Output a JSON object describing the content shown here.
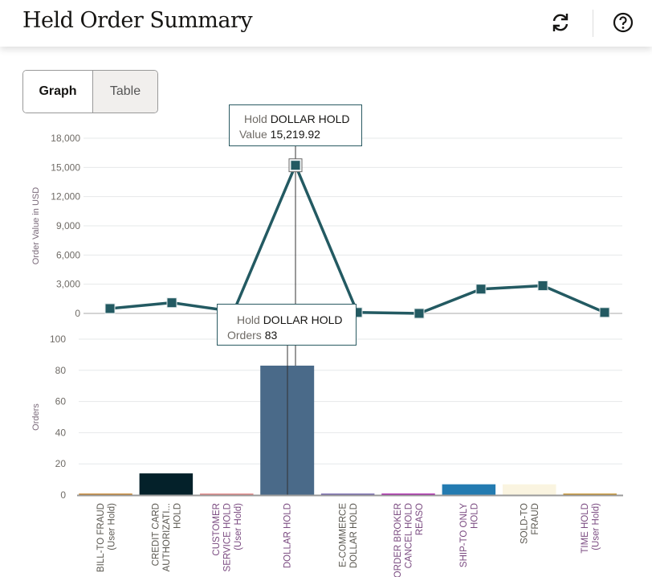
{
  "header": {
    "title": "Held Order Summary",
    "icons": [
      "refresh-icon",
      "help-icon"
    ]
  },
  "view_toggle": {
    "graph_label": "Graph",
    "table_label": "Table",
    "selected": "Graph"
  },
  "tooltips": {
    "value": {
      "hold_label": "Hold",
      "hold_value": "DOLLAR HOLD",
      "value_label": "Value",
      "value_value": "15,219.92"
    },
    "orders": {
      "hold_label": "Hold",
      "hold_value": "DOLLAR HOLD",
      "orders_label": "Orders",
      "orders_value": "83"
    }
  },
  "chart_data": [
    {
      "type": "line",
      "ylabel": "Order Value in USD",
      "ylim": [
        0,
        18000
      ],
      "yticks": [
        "0",
        "3,000",
        "6,000",
        "9,000",
        "12,000",
        "15,000",
        "18,000"
      ],
      "grid": true,
      "color": "#235a62",
      "categories": [
        "BILL-TO FRAUD (User Hold)",
        "CREDIT CARD AUTHORIZATI... HOLD",
        "CUSTOMER SERVICE HOLD (User Hold)",
        "DOLLAR HOLD",
        "E-COMMERCE DOLLAR HOLD",
        "ORDER BROKER CANCEL HOLD REASO",
        "SHIP-TO ONLY HOLD",
        "SOLD-TO FRAUD",
        "TIME HOLD (User Hold)"
      ],
      "values": [
        500,
        1100,
        200,
        15219.92,
        100,
        0,
        2500,
        2850,
        100
      ]
    },
    {
      "type": "bar",
      "ylabel": "Orders",
      "ylim": [
        0,
        100
      ],
      "yticks": [
        "0",
        "20",
        "40",
        "60",
        "80",
        "100"
      ],
      "grid": true,
      "categories": [
        "BILL-TO FRAUD (User Hold)",
        "CREDIT CARD AUTHORIZATI... HOLD",
        "CUSTOMER SERVICE HOLD (User Hold)",
        "DOLLAR HOLD",
        "E-COMMERCE DOLLAR HOLD",
        "ORDER BROKER CANCEL HOLD REASO",
        "SHIP-TO ONLY HOLD",
        "SOLD-TO FRAUD",
        "TIME HOLD (User Hold)"
      ],
      "values": [
        0,
        14,
        0,
        83,
        0,
        1,
        7,
        7,
        0
      ],
      "colors": [
        "#c27a1e",
        "#04212a",
        "#e07a7a",
        "#4a6a89",
        "#6a5aa8",
        "#a20ea2",
        "#237bb1",
        "#faf4e0",
        "#c28a1e"
      ]
    }
  ],
  "x_labels": [
    {
      "lines": [
        "BILL-TO FRAUD",
        "(User Hold)"
      ],
      "color": "#5a5750"
    },
    {
      "lines": [
        "CREDIT CARD",
        "AUTHORIZATI...",
        "HOLD"
      ],
      "color": "#5a5750"
    },
    {
      "lines": [
        "CUSTOMER",
        "SERVICE HOLD",
        "(User Hold)"
      ],
      "color": "#7a4a80"
    },
    {
      "lines": [
        "DOLLAR HOLD"
      ],
      "color": "#7a4a80"
    },
    {
      "lines": [
        "E-COMMERCE",
        "DOLLAR HOLD"
      ],
      "color": "#5a5750"
    },
    {
      "lines": [
        "ORDER BROKER",
        "CANCEL HOLD",
        "REASO"
      ],
      "color": "#7a4a80"
    },
    {
      "lines": [
        "SHIP-TO ONLY",
        "HOLD"
      ],
      "color": "#7a4a80"
    },
    {
      "lines": [
        "SOLD-TO",
        "FRAUD"
      ],
      "color": "#5a5750"
    },
    {
      "lines": [
        "TIME HOLD",
        "(User Hold)"
      ],
      "color": "#7a4a80"
    }
  ]
}
